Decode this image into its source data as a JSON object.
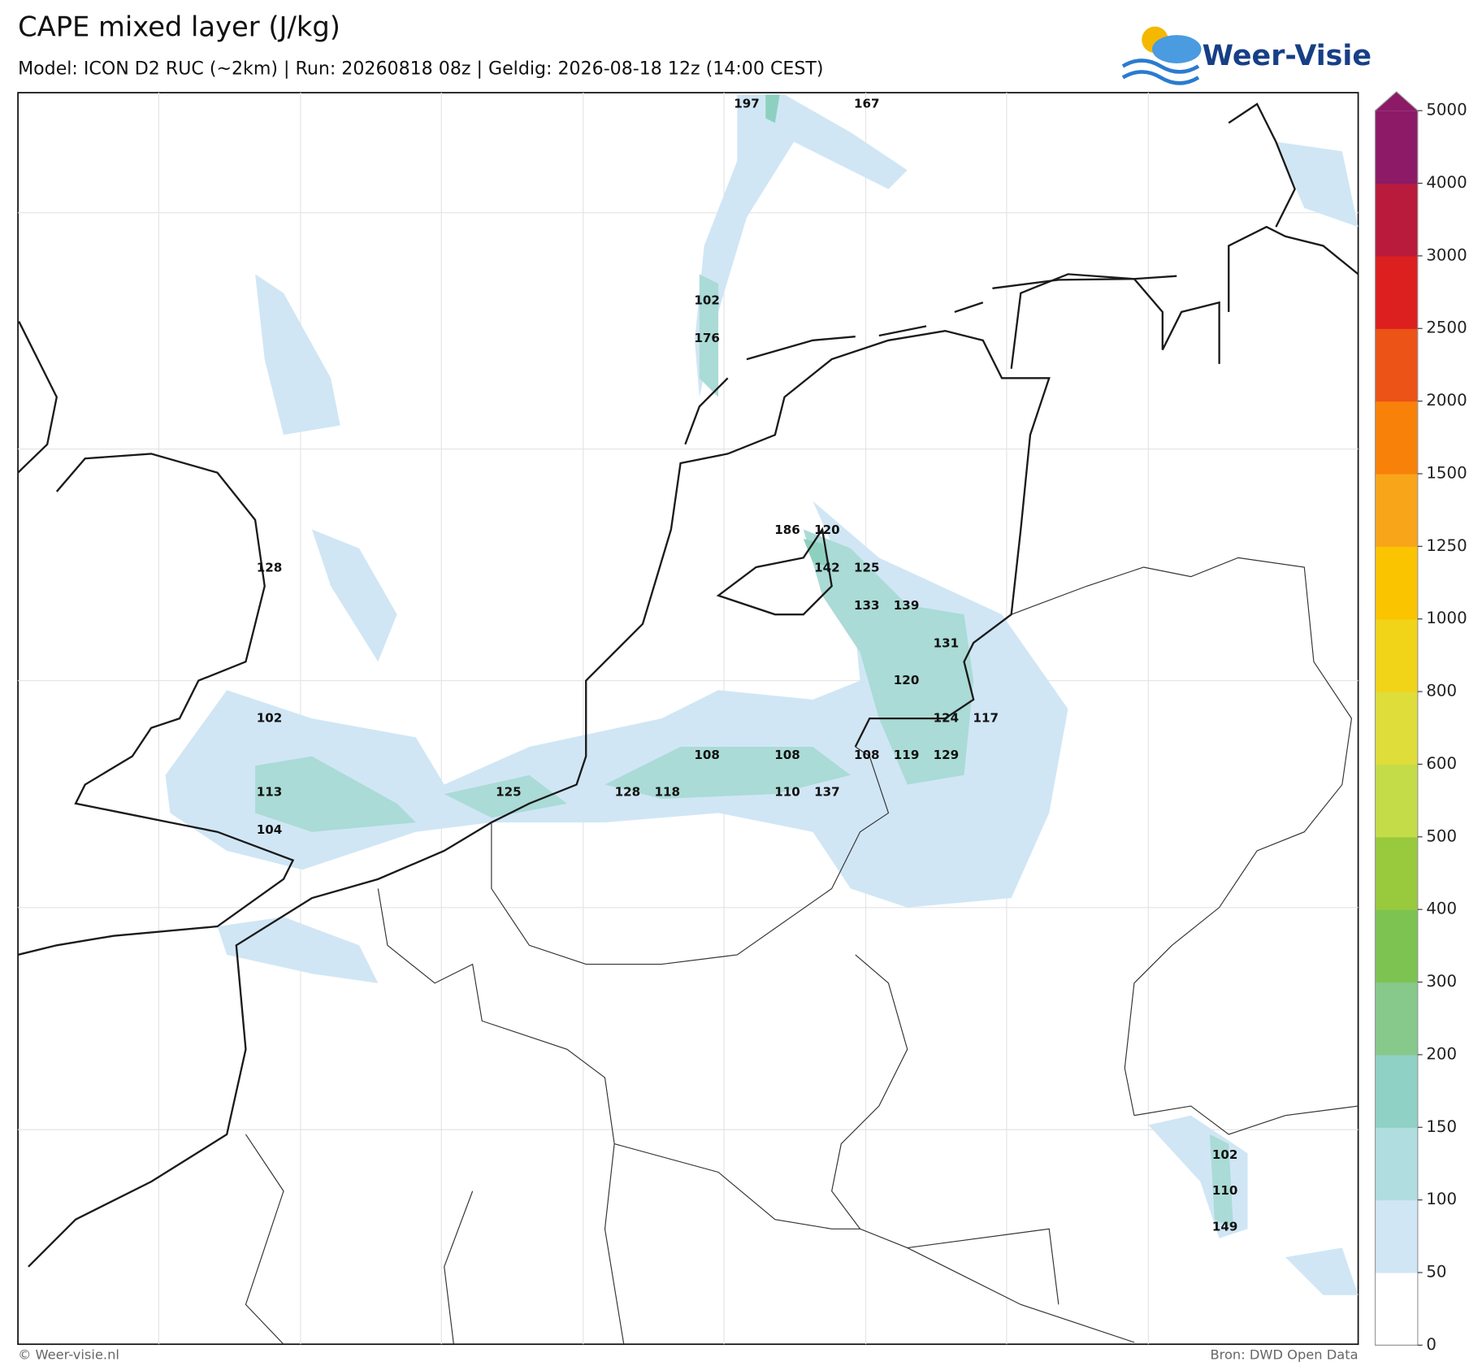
{
  "header": {
    "title": "CAPE mixed layer (J/kg)",
    "subtitle": "Model: ICON D2 RUC (~2km)  |  Run: 20260818 08z  |  Geldig: 2026-08-18 12z (14:00 CEST)",
    "logo": "Weer-Visie"
  },
  "map": {
    "labels": [
      197,
      167,
      102,
      176,
      186,
      120,
      128,
      142,
      125,
      133,
      139,
      131,
      120,
      102,
      124,
      117,
      108,
      108,
      108,
      119,
      129,
      113,
      125,
      128,
      118,
      110,
      137,
      104,
      102,
      110,
      149
    ]
  },
  "colorbar": {
    "ticks": [
      0,
      50,
      100,
      150,
      200,
      300,
      400,
      500,
      600,
      800,
      1000,
      1250,
      1500,
      2000,
      2500,
      3000,
      4000,
      5000
    ],
    "colors": [
      "#ffffff",
      "#d0e6f5",
      "#b0dde0",
      "#8fd1c4",
      "#86c98a",
      "#7cc352",
      "#99c93c",
      "#c4dc48",
      "#dedd3a",
      "#f1d318",
      "#fbc400",
      "#f9a51a",
      "#f8810a",
      "#ec5316",
      "#dc1f1f",
      "#b81b3c",
      "#8c1a67"
    ],
    "extend_color": "#8c1a67"
  },
  "footer": {
    "left": "© Weer-visie.nl",
    "right": "Bron: DWD Open Data"
  }
}
